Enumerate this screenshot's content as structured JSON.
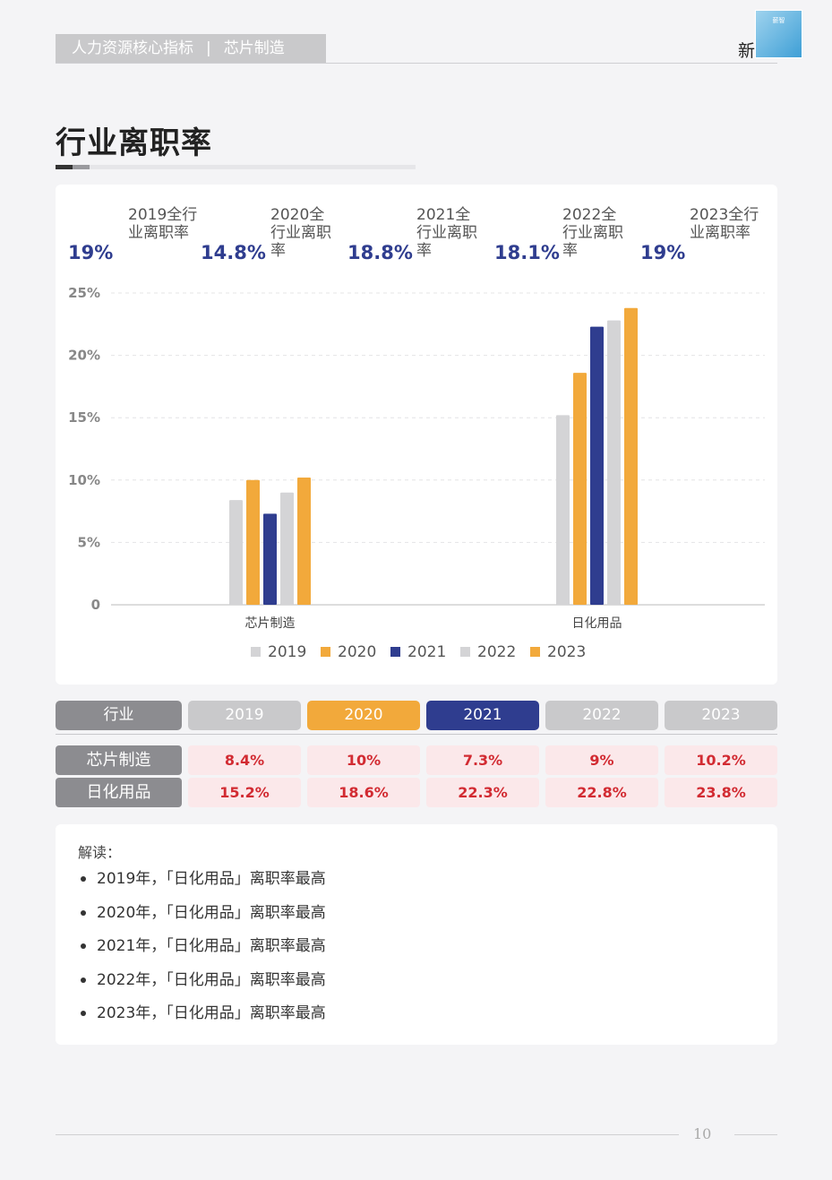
{
  "header": {
    "section": "人力资源核心指标",
    "separator": "|",
    "topic": "芯片制造",
    "logo_text": "新",
    "logo_badge": "薪智"
  },
  "page_title": "行业离职率",
  "kpis": [
    {
      "value": "19%",
      "label": "2019全行业离职率"
    },
    {
      "value": "14.8%",
      "label": "2020全行业离职率"
    },
    {
      "value": "18.8%",
      "label": "2021全行业离职率"
    },
    {
      "value": "18.1%",
      "label": "2022全行业离职率"
    },
    {
      "value": "19%",
      "label": "2023全行业离职率"
    }
  ],
  "chart_data": {
    "type": "bar",
    "categories": [
      "芯片制造",
      "日化用品"
    ],
    "series": [
      {
        "name": "2019",
        "values": [
          8.4,
          15.2
        ],
        "color": "#d4d4d6"
      },
      {
        "name": "2020",
        "values": [
          10,
          18.6
        ],
        "color": "#f2a93b"
      },
      {
        "name": "2021",
        "values": [
          7.3,
          22.3
        ],
        "color": "#2f3d8f"
      },
      {
        "name": "2022",
        "values": [
          9,
          22.8
        ],
        "color": "#d4d4d6"
      },
      {
        "name": "2023",
        "values": [
          10.2,
          23.8
        ],
        "color": "#f2a93b"
      }
    ],
    "ylim": [
      0,
      25
    ],
    "yticks": [
      "0",
      "5%",
      "10%",
      "15%",
      "20%",
      "25%"
    ],
    "grid": true,
    "legend": "bottom"
  },
  "table": {
    "header_label": "行业",
    "years": [
      "2019",
      "2020",
      "2021",
      "2022",
      "2023"
    ],
    "header_colors": [
      "#c9c9cb",
      "#f2a93b",
      "#2f3d8f",
      "#c9c9cb",
      "#c9c9cb"
    ],
    "rows": [
      {
        "label": "芯片制造",
        "values": [
          "8.4%",
          "10%",
          "7.3%",
          "9%",
          "10.2%"
        ]
      },
      {
        "label": "日化用品",
        "values": [
          "15.2%",
          "18.6%",
          "22.3%",
          "22.8%",
          "23.8%"
        ]
      }
    ]
  },
  "notes": {
    "title": "解读：",
    "items": [
      "2019年，「日化用品」离职率最高",
      "2020年，「日化用品」离职率最高",
      "2021年，「日化用品」离职率最高",
      "2022年，「日化用品」离职率最高",
      "2023年，「日化用品」离职率最高"
    ]
  },
  "page_number": "10"
}
